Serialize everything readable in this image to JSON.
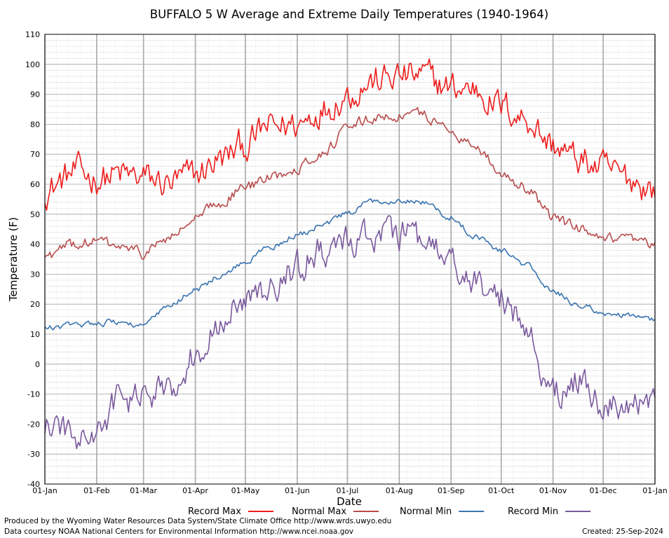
{
  "chart_data": {
    "type": "line",
    "title": "BUFFALO 5 W Average and Extreme Daily Temperatures (1940-1964)",
    "xlabel": "Date",
    "ylabel": "Temperature (F)",
    "ylim": [
      -40,
      110
    ],
    "ytick_step": 10,
    "grid": true,
    "legend_position": "bottom",
    "x_ticks": [
      "01-Jan",
      "01-Feb",
      "01-Mar",
      "01-Apr",
      "01-May",
      "01-Jun",
      "01-Jul",
      "01-Aug",
      "01-Sep",
      "01-Oct",
      "01-Nov",
      "01-Dec",
      "01-Jan"
    ],
    "x_tick_days": [
      1,
      32,
      60,
      91,
      121,
      152,
      182,
      213,
      244,
      274,
      305,
      335,
      366
    ],
    "x_anchor_days": [
      1,
      20,
      32,
      45,
      60,
      75,
      91,
      105,
      121,
      135,
      152,
      166,
      182,
      196,
      213,
      227,
      244,
      258,
      274,
      289,
      305,
      320,
      335,
      350,
      366
    ],
    "series": [
      {
        "name": "Record Max",
        "color": "#ee1c1c",
        "anchors": [
          58,
          64,
          62,
          63,
          62,
          60,
          63,
          68,
          73,
          79,
          80,
          85,
          90,
          94,
          96,
          96,
          92,
          92,
          86,
          82,
          73,
          68,
          65,
          62,
          58
        ],
        "noise_amplitude": 6
      },
      {
        "name": "Normal Max",
        "color": "#b84c4c",
        "anchors": [
          36,
          40,
          41,
          39,
          37,
          42,
          48,
          54,
          59,
          62,
          66,
          70,
          78,
          82,
          83,
          83,
          78,
          73,
          64,
          59,
          49,
          45,
          41,
          41,
          39
        ],
        "noise_amplitude": 2.2
      },
      {
        "name": "Normal Min",
        "color": "#3a74b0",
        "anchors": [
          12,
          13,
          14,
          14,
          13,
          19,
          25,
          29,
          34,
          39,
          43,
          46,
          50,
          54,
          55,
          54,
          49,
          43,
          38,
          33,
          24,
          20,
          17,
          16,
          15
        ],
        "noise_amplitude": 1.2
      },
      {
        "name": "Record Min",
        "color": "#7a5a9e",
        "anchors": [
          -20,
          -25,
          -24,
          -12,
          -12,
          -7,
          3,
          15,
          20,
          25,
          32,
          38,
          40,
          44,
          43,
          40,
          34,
          27,
          22,
          12,
          -10,
          -5,
          -15,
          -12,
          -12
        ],
        "noise_amplitude": 6
      }
    ]
  },
  "footer": {
    "producer": "Produced by the Wyoming Water Resources Data System/State Climate Office http://www.wrds.uwyo.edu",
    "source": "Data courtesy NOAA National Centers for Environmental Information http://www.ncei.noaa.gov",
    "created": "Created:  25-Sep-2024"
  }
}
